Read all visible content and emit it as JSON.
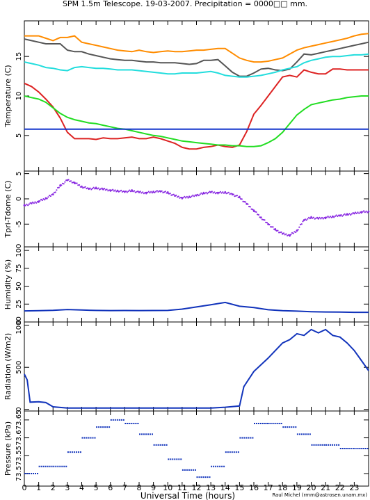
{
  "title": "SPM 1.5m Telescope. 19-03-2007. Precipitation = 0000□□ mm.",
  "credit": "Raul Michel (rmm@astrosen.unam.mx)",
  "chart_data": [
    {
      "type": "line",
      "ylabel": "Temperature (C)",
      "ylim": [
        0.5,
        19.5
      ],
      "yticks": [
        5,
        10,
        15
      ],
      "grid": false,
      "x": [
        0,
        0.5,
        1,
        1.5,
        2,
        2.5,
        3,
        3.5,
        4,
        4.5,
        5,
        5.5,
        6,
        6.5,
        7,
        7.5,
        8,
        8.5,
        9,
        9.5,
        10,
        10.5,
        11,
        11.5,
        12,
        12.5,
        13,
        13.5,
        14,
        14.5,
        15,
        15.5,
        16,
        16.5,
        17,
        17.5,
        18,
        18.5,
        19,
        19.5,
        20,
        20.5,
        21,
        21.5,
        22,
        22.5,
        23,
        23.5,
        24
      ],
      "series": [
        {
          "color": "#ff8c00",
          "values": [
            17.6,
            17.6,
            17.6,
            17.3,
            17.0,
            17.4,
            17.4,
            17.6,
            16.8,
            16.6,
            16.4,
            16.2,
            16.0,
            15.8,
            15.7,
            15.6,
            15.8,
            15.6,
            15.5,
            15.6,
            15.7,
            15.6,
            15.6,
            15.7,
            15.8,
            15.8,
            15.9,
            16.0,
            16.0,
            15.4,
            14.8,
            14.5,
            14.3,
            14.3,
            14.4,
            14.6,
            14.8,
            15.3,
            15.8,
            16.1,
            16.3,
            16.5,
            16.7,
            16.9,
            17.1,
            17.3,
            17.6,
            17.8,
            17.9
          ]
        },
        {
          "color": "#555555",
          "values": [
            17.2,
            17.0,
            16.8,
            16.6,
            16.6,
            16.6,
            15.8,
            15.6,
            15.6,
            15.3,
            15.1,
            14.9,
            14.7,
            14.6,
            14.5,
            14.5,
            14.4,
            14.3,
            14.3,
            14.2,
            14.2,
            14.2,
            14.1,
            14.0,
            14.1,
            14.5,
            14.5,
            14.6,
            13.8,
            13.0,
            12.5,
            12.5,
            12.9,
            13.4,
            13.5,
            13.3,
            13.2,
            13.4,
            14.3,
            15.3,
            15.2,
            15.4,
            15.6,
            15.8,
            16.0,
            16.2,
            16.4,
            16.6,
            16.8
          ]
        },
        {
          "color": "#22dddd",
          "values": [
            14.3,
            14.1,
            13.9,
            13.6,
            13.5,
            13.3,
            13.2,
            13.6,
            13.7,
            13.6,
            13.5,
            13.5,
            13.4,
            13.3,
            13.3,
            13.3,
            13.2,
            13.1,
            13.0,
            12.9,
            12.8,
            12.8,
            12.9,
            12.9,
            12.9,
            13.0,
            13.1,
            12.9,
            12.6,
            12.5,
            12.4,
            12.4,
            12.5,
            12.6,
            12.8,
            13.0,
            13.3,
            13.5,
            13.7,
            14.2,
            14.5,
            14.7,
            14.9,
            15.0,
            15.0,
            15.1,
            15.2,
            15.2,
            15.3
          ]
        },
        {
          "color": "#dd2222",
          "values": [
            11.6,
            11.2,
            10.5,
            9.6,
            8.6,
            7.2,
            5.4,
            4.6,
            4.6,
            4.6,
            4.5,
            4.7,
            4.6,
            4.6,
            4.7,
            4.8,
            4.6,
            4.6,
            4.8,
            4.6,
            4.3,
            4.0,
            3.5,
            3.3,
            3.3,
            3.5,
            3.6,
            3.8,
            3.6,
            3.5,
            3.8,
            5.5,
            7.7,
            8.8,
            10.0,
            11.2,
            12.4,
            12.6,
            12.4,
            13.3,
            13.0,
            12.8,
            12.8,
            13.4,
            13.4,
            13.3,
            13.3,
            13.3,
            13.3
          ]
        },
        {
          "color": "#22dd22",
          "values": [
            10.0,
            9.8,
            9.6,
            9.2,
            8.5,
            7.8,
            7.3,
            7.0,
            6.8,
            6.6,
            6.5,
            6.3,
            6.1,
            5.9,
            5.8,
            5.6,
            5.4,
            5.2,
            5.0,
            4.9,
            4.7,
            4.5,
            4.3,
            4.2,
            4.1,
            4.0,
            3.9,
            3.8,
            3.8,
            3.7,
            3.7,
            3.6,
            3.6,
            3.7,
            4.1,
            4.6,
            5.4,
            6.5,
            7.6,
            8.3,
            8.9,
            9.1,
            9.3,
            9.5,
            9.6,
            9.8,
            9.9,
            10.0,
            10.0
          ]
        },
        {
          "color": "#1133cc",
          "values": [
            5.8,
            5.8,
            5.8,
            5.8,
            5.8,
            5.8,
            5.8,
            5.8,
            5.8,
            5.8,
            5.8,
            5.8,
            5.8,
            5.8,
            5.8,
            5.8,
            5.8,
            5.8,
            5.8,
            5.8,
            5.8,
            5.8,
            5.8,
            5.8,
            5.8,
            5.8,
            5.8,
            5.8,
            5.8,
            5.8,
            5.8,
            5.8,
            5.8,
            5.8,
            5.8,
            5.8,
            5.8,
            5.8,
            5.8,
            5.8,
            5.8,
            5.8,
            5.8,
            5.8,
            5.8,
            5.8,
            5.8,
            5.8,
            5.8
          ]
        }
      ]
    },
    {
      "type": "scatter",
      "ylabel": "Tpri-Tdome (C)",
      "ylim": [
        -9.5,
        5.5
      ],
      "yticks": [
        -5,
        0,
        5
      ],
      "grid": false,
      "x": [
        0,
        0.5,
        1,
        1.5,
        2,
        2.5,
        3,
        3.5,
        4,
        4.5,
        5,
        5.5,
        6,
        6.5,
        7,
        7.5,
        8,
        8.5,
        9,
        9.5,
        10,
        10.5,
        11,
        11.5,
        12,
        12.5,
        13,
        13.5,
        14,
        14.5,
        15,
        15.5,
        16,
        16.5,
        17,
        17.5,
        18,
        18.5,
        19,
        19.5,
        20,
        20.5,
        21,
        21.5,
        22,
        22.5,
        23,
        23.5,
        24
      ],
      "series": [
        {
          "color": "#8a2be2",
          "values": [
            -1.3,
            -0.9,
            -0.5,
            0.1,
            0.9,
            2.6,
            3.7,
            3.2,
            2.4,
            2.0,
            2.1,
            1.9,
            1.7,
            1.6,
            1.4,
            1.6,
            1.3,
            1.2,
            1.4,
            1.5,
            1.2,
            0.6,
            0.2,
            0.4,
            0.7,
            1.1,
            1.3,
            1.2,
            1.3,
            0.9,
            0.3,
            -1.0,
            -2.3,
            -3.7,
            -5.0,
            -6.1,
            -6.9,
            -7.2,
            -6.3,
            -4.2,
            -3.7,
            -3.9,
            -3.7,
            -3.5,
            -3.3,
            -3.1,
            -2.9,
            -2.6,
            -2.5
          ]
        }
      ]
    },
    {
      "type": "line",
      "ylabel": "Humidity (%)",
      "ylim": [
        0,
        105
      ],
      "yticks": [
        0,
        25,
        50,
        75,
        100
      ],
      "grid": false,
      "x": [
        0,
        1,
        2,
        3,
        4,
        5,
        6,
        7,
        8,
        9,
        10,
        11,
        12,
        13,
        14,
        15,
        16,
        17,
        18,
        19,
        20,
        21,
        22,
        23,
        24
      ],
      "series": [
        {
          "color": "#1133bb",
          "values": [
            15.5,
            15.8,
            16.2,
            17.4,
            16.7,
            16.1,
            15.9,
            16.0,
            15.9,
            16.0,
            16.1,
            18.0,
            21.0,
            24.0,
            27.3,
            22.0,
            20.2,
            17.1,
            15.8,
            15.2,
            14.4,
            14.0,
            13.8,
            13.5,
            13.5
          ]
        }
      ]
    },
    {
      "type": "line",
      "ylabel": "Radiation (W/m2)",
      "ylim": [
        -20,
        1040
      ],
      "yticks": [
        0,
        500,
        1000
      ],
      "grid": false,
      "x": [
        0,
        0.2,
        0.4,
        1,
        1.5,
        2,
        3,
        4,
        5,
        6,
        7,
        8,
        9,
        10,
        11,
        12,
        13,
        14,
        15,
        15.3,
        16,
        17,
        18,
        18.5,
        19,
        19.5,
        20,
        20.5,
        21,
        21.5,
        22,
        22.5,
        23,
        23.5,
        24
      ],
      "series": [
        {
          "color": "#1133bb",
          "values": [
            420,
            350,
            85,
            90,
            80,
            30,
            15,
            15,
            15,
            15,
            15,
            15,
            15,
            15,
            15,
            15,
            15,
            25,
            40,
            270,
            450,
            610,
            790,
            830,
            900,
            880,
            950,
            910,
            950,
            880,
            860,
            790,
            700,
            580,
            460
          ]
        }
      ]
    },
    {
      "type": "scatter",
      "ylabel": "Pressure (kPa)",
      "ylim": [
        73.465,
        73.675
      ],
      "yticks": [
        73.5,
        73.55,
        73.6,
        73.65
      ],
      "ytick_labels": [
        "73.5",
        "73.55",
        "73.6",
        "73.65"
      ],
      "xlabel": "Universal Time (hours)",
      "xlim": [
        0,
        24
      ],
      "xticks": [
        0,
        1,
        2,
        3,
        4,
        5,
        6,
        7,
        8,
        9,
        10,
        11,
        12,
        13,
        14,
        15,
        16,
        17,
        18,
        19,
        20,
        21,
        22,
        23
      ],
      "grid": false,
      "x": [
        0,
        1,
        2,
        3,
        4,
        5,
        6,
        7,
        8,
        9,
        10,
        11,
        12,
        13,
        14,
        15,
        16,
        17,
        18,
        19,
        20,
        21,
        22,
        23,
        24
      ],
      "series": [
        {
          "color": "#1133bb",
          "values": [
            73.5,
            73.52,
            73.52,
            73.56,
            73.6,
            73.63,
            73.65,
            73.64,
            73.61,
            73.58,
            73.54,
            73.51,
            73.49,
            73.52,
            73.56,
            73.6,
            73.64,
            73.64,
            73.63,
            73.61,
            73.58,
            73.58,
            73.57,
            73.57,
            73.57
          ]
        }
      ]
    }
  ]
}
